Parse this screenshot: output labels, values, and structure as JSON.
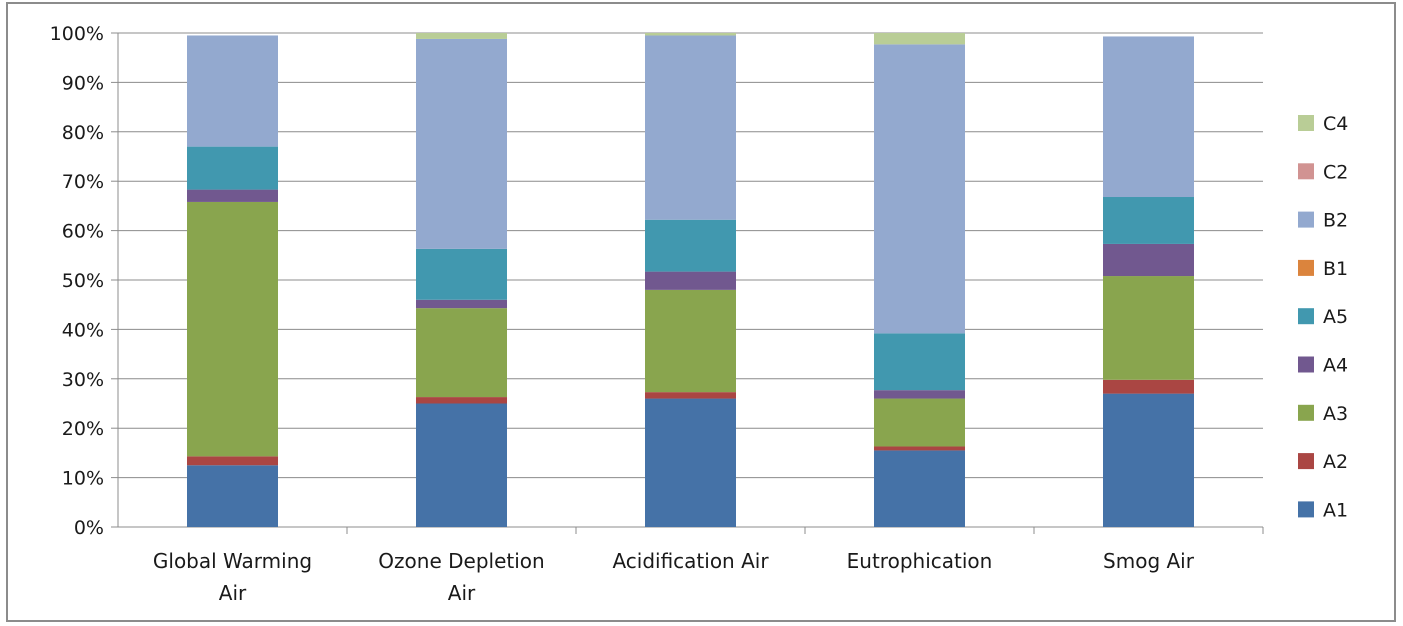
{
  "chart_data": {
    "type": "bar",
    "stacked": true,
    "percent": true,
    "categories": [
      [
        "Global Warming",
        "Air"
      ],
      [
        "Ozone Depletion",
        "Air"
      ],
      [
        "Acidification Air"
      ],
      [
        "Eutrophication"
      ],
      [
        "Smog Air"
      ]
    ],
    "ylim": [
      0,
      100
    ],
    "yticks": [
      "0%",
      "10%",
      "20%",
      "30%",
      "40%",
      "50%",
      "60%",
      "70%",
      "80%",
      "90%",
      "100%"
    ],
    "grid": true,
    "legend_position": "right",
    "series": [
      {
        "name": "A1",
        "color": "#4572a7",
        "values": [
          12.5,
          25.0,
          26.0,
          15.5,
          27.0
        ]
      },
      {
        "name": "A2",
        "color": "#aa4643",
        "values": [
          1.8,
          1.3,
          1.3,
          0.8,
          2.8
        ]
      },
      {
        "name": "A3",
        "color": "#89a54e",
        "values": [
          51.5,
          18.0,
          20.7,
          9.7,
          21.0
        ]
      },
      {
        "name": "A4",
        "color": "#71588f",
        "values": [
          2.5,
          1.7,
          3.7,
          1.7,
          6.5
        ]
      },
      {
        "name": "A5",
        "color": "#4198af",
        "values": [
          8.7,
          10.3,
          10.5,
          11.5,
          9.5
        ]
      },
      {
        "name": "B1",
        "color": "#db843d",
        "values": [
          0,
          0,
          0,
          0,
          0
        ]
      },
      {
        "name": "B2",
        "color": "#93a9cf",
        "values": [
          22.5,
          42.5,
          37.3,
          58.5,
          32.5
        ]
      },
      {
        "name": "C2",
        "color": "#d19392",
        "values": [
          0,
          0,
          0,
          0,
          0
        ]
      },
      {
        "name": "C4",
        "color": "#b9cd96",
        "values": [
          0,
          1.2,
          0.5,
          2.3,
          0
        ]
      }
    ]
  }
}
